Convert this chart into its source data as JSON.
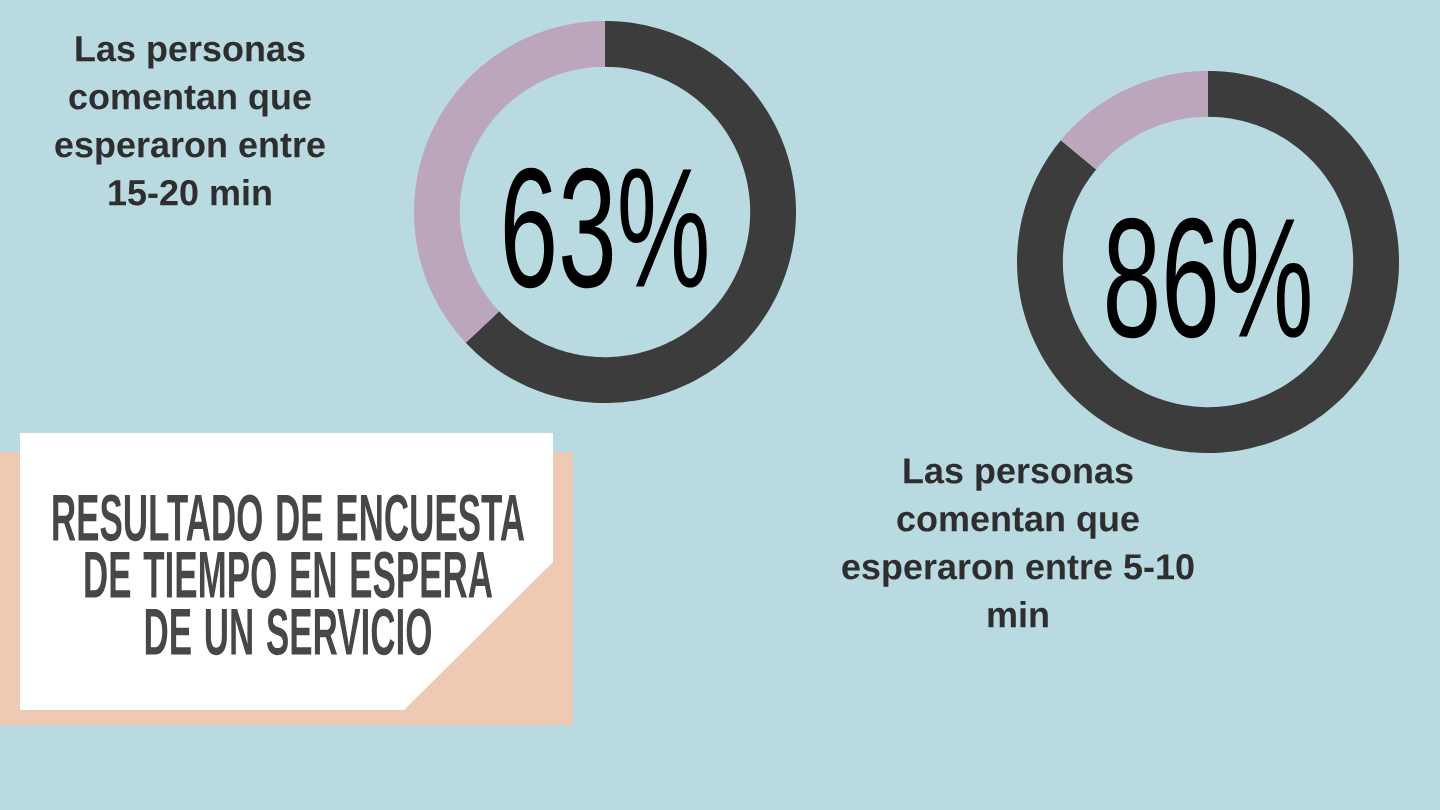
{
  "chart_data": [
    {
      "type": "donut",
      "categories": [
        null,
        null
      ],
      "values": [
        63,
        37
      ],
      "colors": [
        "#3c3c3c",
        "#bba6bb"
      ],
      "value_labels": [
        "63%",
        null
      ],
      "annotations": [
        "Las personas comentan que esperaron entre 15-20 min"
      ]
    },
    {
      "type": "donut",
      "categories": [
        null,
        null
      ],
      "values": [
        86,
        14
      ],
      "colors": [
        "#3c3c3c",
        "#bba6bb"
      ],
      "value_labels": [
        "86%",
        null
      ],
      "annotations": [
        "Las personas comentan que esperaron entre 5-10 min"
      ]
    },
    {
      "type": "other",
      "title": "RESULTADO DE ENCUESTA DE TIEMPO EN ESPERA DE UN SERVICIO"
    }
  ]
}
